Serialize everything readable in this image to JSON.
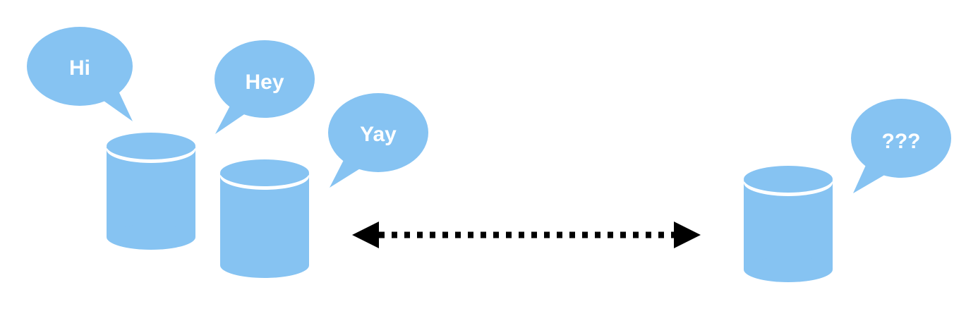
{
  "colors": {
    "shape_fill": "#86C3F2",
    "band": "#ffffff",
    "arrow": "#000000",
    "text": "#ffffff"
  },
  "bubbles": [
    {
      "text": "Hi"
    },
    {
      "text": "Hey"
    },
    {
      "text": "Yay"
    },
    {
      "text": "???"
    }
  ],
  "connector": {
    "style": "dotted",
    "direction": "bidirectional"
  }
}
